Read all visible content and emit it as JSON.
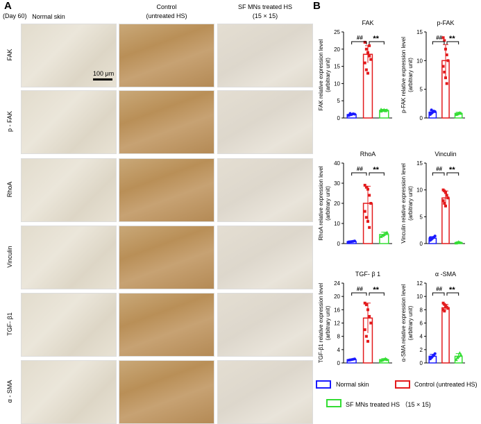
{
  "panel_a": {
    "letter": "A",
    "day_label": "(Day 60)",
    "columns": [
      {
        "label": "Normal skin"
      },
      {
        "label": "Control\n(untreated HS)"
      },
      {
        "label": "SF MNs treated HS\n(15 × 15)"
      }
    ],
    "rows": [
      "FAK",
      "p - FAK",
      "RhoA",
      "Vinculin",
      "TGF- β1",
      "α - SMA"
    ],
    "scale_bar": "100 μm"
  },
  "panel_b": {
    "letter": "B"
  },
  "colors": {
    "normal": "#1a1aff",
    "control": "#e31a1c",
    "treated": "#33dd33"
  },
  "legend": [
    {
      "label": "Normal skin",
      "color": "#1a1aff"
    },
    {
      "label": "Control (untreated HS)",
      "color": "#e31a1c"
    },
    {
      "label": "SF MNs treated HS  （15 × 15)",
      "color": "#33dd33"
    }
  ],
  "chart_data": [
    {
      "type": "bar",
      "title": "FAK",
      "ylabel": "FAK relative expression level\n(arbitrary unit)",
      "ylim": [
        0,
        25
      ],
      "yticks": [
        0,
        5,
        10,
        15,
        20,
        25
      ],
      "categories": [
        "Normal skin",
        "Control (untreated HS)",
        "SF MNs treated HS (15 × 15)"
      ],
      "values": [
        1.0,
        18.5,
        2.2
      ],
      "errors": [
        0.3,
        2.5,
        0.3
      ],
      "points": [
        [
          0.7,
          0.9,
          1.0,
          1.2,
          1.1,
          0.8,
          1.3
        ],
        [
          22,
          20,
          19,
          18,
          17,
          16,
          14,
          13,
          21
        ],
        [
          2.0,
          2.2,
          2.4,
          2.1,
          2.3,
          2.5
        ]
      ],
      "sig": [
        "##",
        "**"
      ]
    },
    {
      "type": "bar",
      "title": "p-FAK",
      "ylabel": "p-FAK relative expression level\n(arbitrary unit)",
      "ylim": [
        0,
        15
      ],
      "yticks": [
        0,
        5,
        10,
        15
      ],
      "categories": [
        "Normal skin",
        "Control (untreated HS)",
        "SF MNs treated HS (15 × 15)"
      ],
      "values": [
        1.0,
        10.0,
        0.8
      ],
      "errors": [
        0.3,
        2.8,
        0.2
      ],
      "points": [
        [
          0.6,
          0.8,
          1.0,
          1.2,
          1.1,
          0.9,
          1.4
        ],
        [
          14,
          13.5,
          12,
          11,
          10,
          9,
          8,
          7,
          6
        ],
        [
          0.6,
          0.7,
          0.8,
          0.9,
          0.8
        ]
      ],
      "sig": [
        "##",
        "**"
      ]
    },
    {
      "type": "bar",
      "title": "RhoA",
      "ylabel": "RhoA relative expression level\n(arbitrary unit)",
      "ylim": [
        0,
        40
      ],
      "yticks": [
        0,
        10,
        20,
        30,
        40
      ],
      "categories": [
        "Normal skin",
        "Control (untreated HS)",
        "SF MNs treated HS (15 × 15)"
      ],
      "values": [
        1.0,
        20.0,
        4.5
      ],
      "errors": [
        0.3,
        8.5,
        1.2
      ],
      "points": [
        [
          0.7,
          0.9,
          1.0,
          1.1,
          1.3,
          0.8
        ],
        [
          29,
          28,
          27,
          24,
          20,
          16,
          13,
          11,
          8
        ],
        [
          3.5,
          4.0,
          4.5,
          5.0,
          5.5
        ]
      ],
      "sig": [
        "##",
        "**"
      ]
    },
    {
      "type": "bar",
      "title": "Vinculin",
      "ylabel": "Vinculin relative expression level\n(arbitrary unit)",
      "ylim": [
        0,
        15
      ],
      "yticks": [
        0,
        5,
        10,
        15
      ],
      "categories": [
        "Normal skin",
        "Control (untreated HS)",
        "SF MNs treated HS (15 × 15)"
      ],
      "values": [
        1.0,
        8.5,
        0.2
      ],
      "errors": [
        0.3,
        1.3,
        0.1
      ],
      "points": [
        [
          0.6,
          0.8,
          1.0,
          1.2,
          1.4,
          1.1
        ],
        [
          10,
          9.8,
          9.5,
          9,
          8.5,
          8,
          7.5,
          7
        ],
        [
          0.1,
          0.2,
          0.3,
          0.2
        ]
      ],
      "sig": [
        "##",
        "**"
      ]
    },
    {
      "type": "bar",
      "title": "TGF- β 1",
      "ylabel": "TGF-β1 relative expression level\n(arbitrary unit)",
      "ylim": [
        0,
        24
      ],
      "yticks": [
        0,
        4,
        8,
        12,
        16,
        20,
        24
      ],
      "categories": [
        "Normal skin",
        "Control (untreated HS)",
        "SF MNs treated HS (15 × 15)"
      ],
      "values": [
        1.0,
        13.5,
        1.0
      ],
      "errors": [
        0.2,
        4.5,
        0.3
      ],
      "points": [
        [
          0.8,
          0.9,
          1.0,
          1.1,
          1.2
        ],
        [
          18,
          17.5,
          16,
          14,
          12,
          10,
          8,
          6.5
        ],
        [
          0.7,
          0.9,
          1.1,
          1.3,
          1.0
        ]
      ],
      "sig": [
        "##",
        "**"
      ]
    },
    {
      "type": "bar",
      "title": "α -SMA",
      "ylabel": "α-SMA relative expression level\n(arbitrary unit)",
      "ylim": [
        0,
        12
      ],
      "yticks": [
        0,
        2,
        4,
        6,
        8,
        10,
        12
      ],
      "categories": [
        "Normal skin",
        "Control (untreated HS)",
        "SF MNs treated HS (15 × 15)"
      ],
      "values": [
        1.0,
        8.3,
        1.0
      ],
      "errors": [
        0.3,
        0.5,
        0.4
      ],
      "points": [
        [
          0.6,
          0.8,
          1.0,
          1.2,
          1.4,
          0.9
        ],
        [
          9,
          8.8,
          8.6,
          8.4,
          8.2,
          8,
          7.8,
          8.5
        ],
        [
          0.5,
          0.8,
          1.0,
          1.5,
          1.2
        ]
      ],
      "sig": [
        "##",
        "**"
      ]
    }
  ]
}
